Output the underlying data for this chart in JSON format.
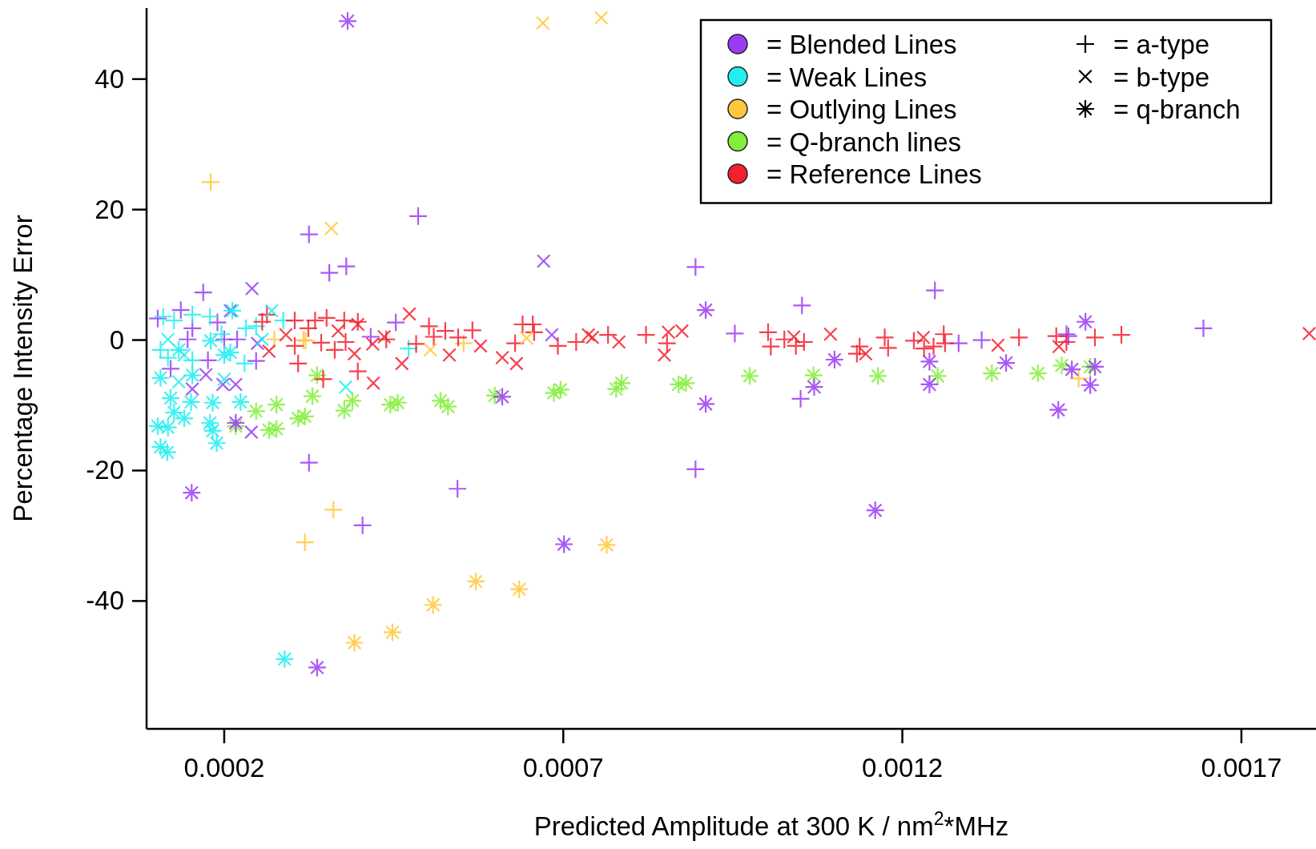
{
  "chart_data": {
    "type": "scatter",
    "xlabel": "Predicted Amplitude at 300 K / nm$^{2}$*MHz",
    "ylabel": "Percentage Intensity Error",
    "xlim": [
      8.55e-05,
      0.00181
    ],
    "ylim": [
      -59.6,
      50.9
    ],
    "xticks": [
      0.0002,
      0.0007,
      0.0012,
      0.0017
    ],
    "yticks": [
      -40,
      -20,
      0,
      20,
      40
    ],
    "grid": false,
    "legend": "top right",
    "annotations": [
      "= a-type",
      "= b-type",
      "= q-branch"
    ],
    "series": [
      {
        "name": "= Blended Lines",
        "color": "#9b3cf5",
        "x": [
          0.000325,
          0.000355,
          0.00038,
          0.000486,
          0.000169,
          0.000325,
          0.000404,
          0.000544,
          0.000895,
          0.000895,
          0.001052,
          0.001248,
          0.001644,
          0.000953,
          0.00105,
          0.001442,
          0.001283,
          0.001317,
          0.001445,
          0.000102,
          0.000136,
          0.000153,
          0.000146,
          0.000176,
          0.0002,
          0.000219,
          0.000247,
          0.00019,
          0.000453,
          0.000416,
          0.000121
        ],
        "values": [
          16.2,
          10.3,
          11.3,
          19.0,
          7.3,
          -18.8,
          -28.4,
          -22.8,
          11.2,
          -19.8,
          5.3,
          7.6,
          1.8,
          1.0,
          -9.0,
          0.9,
          -0.5,
          0.0,
          0.6,
          3.3,
          4.6,
          1.8,
          0.1,
          -3.1,
          0.1,
          0.1,
          -3.2,
          2.7,
          2.7,
          0.5,
          -4.4
        ]
      },
      {
        "name": "= Weak Lines",
        "color": "#22eef0",
        "x": [
          0.00011,
          0.000126,
          0.000153,
          0.000179,
          0.000232,
          0.000247,
          0.000106,
          0.000117,
          0.000153,
          0.00023,
          0.000287,
          0.000472,
          0.000196
        ],
        "values": [
          3.6,
          3.0,
          3.9,
          3.6,
          1.8,
          2.1,
          -1.5,
          -2.7,
          -3.1,
          -3.6,
          3.0,
          -1.3,
          0.9
        ]
      },
      {
        "name": "= Outlying Lines",
        "color": "#ffc83c",
        "x": [
          0.00018,
          0.000361,
          0.000319,
          0.000274,
          0.00032,
          0.000553,
          0.00146,
          0.000317
        ],
        "values": [
          24.2,
          -26.0,
          -31.0,
          0.1,
          -0.1,
          -0.5,
          -5.9,
          0.0
        ]
      },
      {
        "name": "= Q-branch lines",
        "color": "#84ee3c",
        "marker": "star",
        "x": [
          0.000337,
          0.000247,
          0.000277,
          0.000217,
          0.000266,
          0.000277,
          0.000309,
          0.000319,
          0.00033,
          0.000377,
          0.000389,
          0.000445,
          0.000456,
          0.000519,
          0.00053,
          0.000599,
          0.000686,
          0.000696,
          0.000778,
          0.000786,
          0.00087,
          0.000881,
          0.000975,
          0.001069,
          0.001164,
          0.001252,
          0.001332,
          0.0014,
          0.001435,
          0.001477
        ],
        "values": [
          -5.4,
          -10.9,
          -9.9,
          -13.2,
          -13.8,
          -13.6,
          -12.0,
          -11.7,
          -8.6,
          -10.8,
          -9.3,
          -9.9,
          -9.6,
          -9.3,
          -10.2,
          -8.5,
          -8.1,
          -7.6,
          -7.5,
          -6.6,
          -6.8,
          -6.6,
          -5.5,
          -5.4,
          -5.5,
          -5.5,
          -5.1,
          -5.1,
          -3.9,
          -4.1
        ]
      },
      {
        "name": "= Reference Lines",
        "color": "#f5202e",
        "x": [
          0.000256,
          0.000263,
          0.000304,
          0.000324,
          0.000334,
          0.000351,
          0.000377,
          0.000397,
          0.000304,
          0.000343,
          0.000309,
          0.000346,
          0.000363,
          0.000379,
          0.000397,
          0.000439,
          0.000502,
          0.000509,
          0.000483,
          0.000526,
          0.000545,
          0.000566,
          0.000629,
          0.00064,
          0.000655,
          0.000657,
          0.000692,
          0.000719,
          0.000766,
          0.000822,
          0.000853,
          0.001002,
          0.001006,
          0.001026,
          0.001043,
          0.001055,
          0.001137,
          0.001133,
          0.001174,
          0.001179,
          0.001217,
          0.001232,
          0.001246,
          0.001261,
          0.001263,
          0.001372,
          0.001427,
          0.001442,
          0.001484,
          0.001523
        ],
        "values": [
          2.8,
          3.9,
          3.0,
          1.8,
          3.0,
          3.4,
          3.0,
          2.8,
          -0.9,
          -0.4,
          -3.6,
          -6.0,
          -1.5,
          -0.3,
          -4.8,
          0.1,
          2.1,
          0.5,
          -0.6,
          1.4,
          0.4,
          1.5,
          -0.5,
          2.4,
          2.4,
          1.2,
          -0.9,
          -0.3,
          0.8,
          0.8,
          -0.5,
          1.2,
          -1.0,
          0.1,
          -0.9,
          -0.3,
          -1.0,
          -2.1,
          0.4,
          -1.2,
          -0.1,
          -1.3,
          -1.0,
          0.9,
          -0.5,
          0.4,
          0.6,
          -0.3,
          0.4,
          0.8
        ]
      },
      {
        "color": "#9b3cf5",
        "marker": "cross",
        "x": [
          0.000241,
          0.000671,
          0.00024,
          0.000209,
          0.000217,
          0.000198,
          0.000173,
          0.000153,
          0.000249,
          0.000683
        ],
        "values": [
          7.9,
          12.1,
          -14.1,
          4.5,
          -6.8,
          -6.8,
          -5.3,
          -7.5,
          -0.5,
          0.8
        ]
      },
      {
        "color": "#9b3cf5",
        "marker": "star",
        "x": [
          0.000382,
          0.000152,
          0.000337,
          0.000701,
          0.00061,
          0.00091,
          0.00091,
          0.0011,
          0.00107,
          0.00116,
          0.00124,
          0.00124,
          0.001353,
          0.00143,
          0.00147,
          0.001477,
          0.00145,
          0.001484,
          0.000217
        ],
        "values": [
          48.9,
          -23.4,
          -50.2,
          -31.3,
          -8.7,
          4.6,
          -9.8,
          -3.0,
          -7.2,
          -26.1,
          -3.3,
          -6.8,
          -3.5,
          -10.7,
          2.8,
          -6.9,
          -4.5,
          -4.1,
          -12.7
        ]
      },
      {
        "color": "#22eef0",
        "marker": "cross",
        "x": [
          0.00027,
          0.000379,
          0.000117,
          0.000141,
          0.000133,
          0.0002,
          0.000256
        ],
        "values": [
          4.5,
          -7.2,
          0.1,
          -2.3,
          -6.4,
          -6.0,
          0.1
        ]
      },
      {
        "color": "#22eef0",
        "marker": "star",
        "x": [
          0.000289,
          0.000102,
          0.000117,
          0.000106,
          0.000116,
          0.000126,
          0.000141,
          0.000121,
          0.000151,
          0.000183,
          0.000224,
          0.000179,
          0.000183,
          0.000189,
          0.000106,
          0.000153,
          0.00018,
          0.0002,
          0.000209,
          0.000133,
          0.000212
        ],
        "values": [
          -48.9,
          -13.2,
          -13.4,
          -16.4,
          -17.2,
          -11.1,
          -12.0,
          -8.9,
          -9.5,
          -9.6,
          -9.5,
          -12.7,
          -13.9,
          -15.8,
          -5.8,
          -5.4,
          -0.1,
          -2.3,
          -1.9,
          -1.5,
          4.5
        ]
      },
      {
        "color": "#ffc83c",
        "marker": "cross",
        "x": [
          0.00067,
          0.000756,
          0.000358,
          0.000504,
          0.000646
        ],
        "values": [
          48.6,
          49.4,
          17.1,
          -1.5,
          0.3
        ]
      },
      {
        "color": "#ffc83c",
        "marker": "star",
        "x": [
          0.000392,
          0.000448,
          0.000508,
          0.000571,
          0.000635,
          0.000764
        ],
        "values": [
          -46.4,
          -44.8,
          -40.6,
          -37.0,
          -38.2,
          -31.4
        ]
      },
      {
        "color": "#f5202e",
        "marker": "cross",
        "x": [
          0.000291,
          0.000266,
          0.000368,
          0.000392,
          0.000397,
          0.000419,
          0.00042,
          0.000436,
          0.000462,
          0.000473,
          0.000532,
          0.000578,
          0.00061,
          0.000631,
          0.000737,
          0.000743,
          0.000782,
          0.000855,
          0.000875,
          0.000849,
          0.00104,
          0.001094,
          0.001146,
          0.001231,
          0.001341,
          0.001431,
          0.0018
        ],
        "values": [
          0.8,
          -1.7,
          1.4,
          -2.1,
          2.4,
          -0.6,
          -6.6,
          0.5,
          -3.6,
          4.0,
          -2.3,
          -0.9,
          -2.7,
          -3.6,
          0.8,
          0.4,
          -0.3,
          1.2,
          1.4,
          -2.3,
          0.5,
          0.9,
          -2.1,
          0.4,
          -0.8,
          -1.0,
          1.0
        ]
      }
    ]
  }
}
